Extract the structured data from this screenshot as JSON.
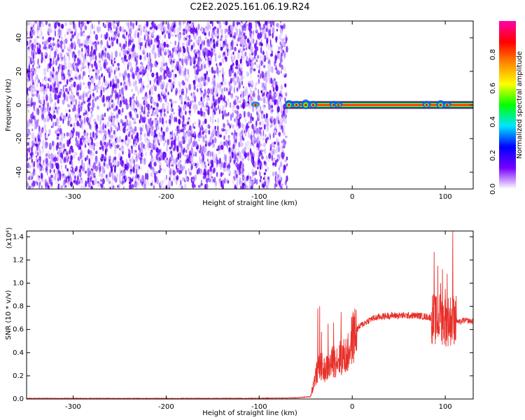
{
  "title": "C2E2.2025.161.06.19.R24",
  "chart_data": [
    {
      "type": "heatmap",
      "xlabel": "Height of straight line (km)",
      "ylabel": "Frequency (Hz)",
      "xlim": [
        -350,
        130
      ],
      "ylim": [
        -50,
        50
      ],
      "xticks": [
        "-300",
        "-200",
        "-100",
        "0",
        "100"
      ],
      "xtick_values": [
        -300,
        -200,
        -100,
        0,
        100
      ],
      "yticks": [
        "-40",
        "-20",
        "0",
        "20",
        "40"
      ],
      "ytick_values": [
        -40,
        -20,
        0,
        20,
        40
      ],
      "noise_region_km": [
        -350,
        -70
      ],
      "signal_line_hz": 0,
      "signal_region_km": [
        -72,
        130
      ],
      "colorbar": {
        "label": "Normalized spectral amplitude",
        "range": [
          0,
          1
        ],
        "ticks": [
          "0.0",
          "0.2",
          "0.4",
          "0.6",
          "0.8"
        ],
        "tick_values": [
          0,
          0.2,
          0.4,
          0.6,
          0.8
        ],
        "colormap": [
          "#ffffff",
          "#7700ff",
          "#0000ff",
          "#00e5ff",
          "#00ff00",
          "#ffff00",
          "#ff8800",
          "#ff0000",
          "#ff00aa"
        ]
      }
    },
    {
      "type": "line",
      "xlabel": "Height of straight line (km)",
      "ylabel": "SNR (10 * v/v)",
      "y_multiplier": "(x10⁴)",
      "xlim": [
        -350,
        130
      ],
      "ylim": [
        0,
        1.45
      ],
      "xticks": [
        "-300",
        "-200",
        "-100",
        "0",
        "100"
      ],
      "xtick_values": [
        -300,
        -200,
        -100,
        0,
        100
      ],
      "yticks": [
        "0.0",
        "0.2",
        "0.4",
        "0.6",
        "0.8",
        "1.0",
        "1.2",
        "1.4"
      ],
      "ytick_values": [
        0,
        0.2,
        0.4,
        0.6,
        0.8,
        1.0,
        1.2,
        1.4
      ],
      "color": "#e8302a",
      "series": [
        {
          "x": [
            -350,
            -300,
            -250,
            -200,
            -150,
            -100,
            -60,
            -45,
            -40,
            -35,
            -30,
            -25,
            -20,
            -15,
            -10,
            -5,
            0,
            5,
            10,
            20,
            30,
            40,
            50,
            60,
            70,
            80,
            85,
            90,
            95,
            100,
            105,
            110,
            115,
            120,
            130
          ],
          "y": [
            0.005,
            0.005,
            0.005,
            0.005,
            0.005,
            0.006,
            0.01,
            0.02,
            0.18,
            0.3,
            0.25,
            0.28,
            0.33,
            0.35,
            0.36,
            0.38,
            0.52,
            0.6,
            0.64,
            0.69,
            0.71,
            0.72,
            0.72,
            0.72,
            0.72,
            0.71,
            0.7,
            0.68,
            0.7,
            0.67,
            0.68,
            0.69,
            0.66,
            0.68,
            0.67
          ]
        }
      ]
    }
  ]
}
